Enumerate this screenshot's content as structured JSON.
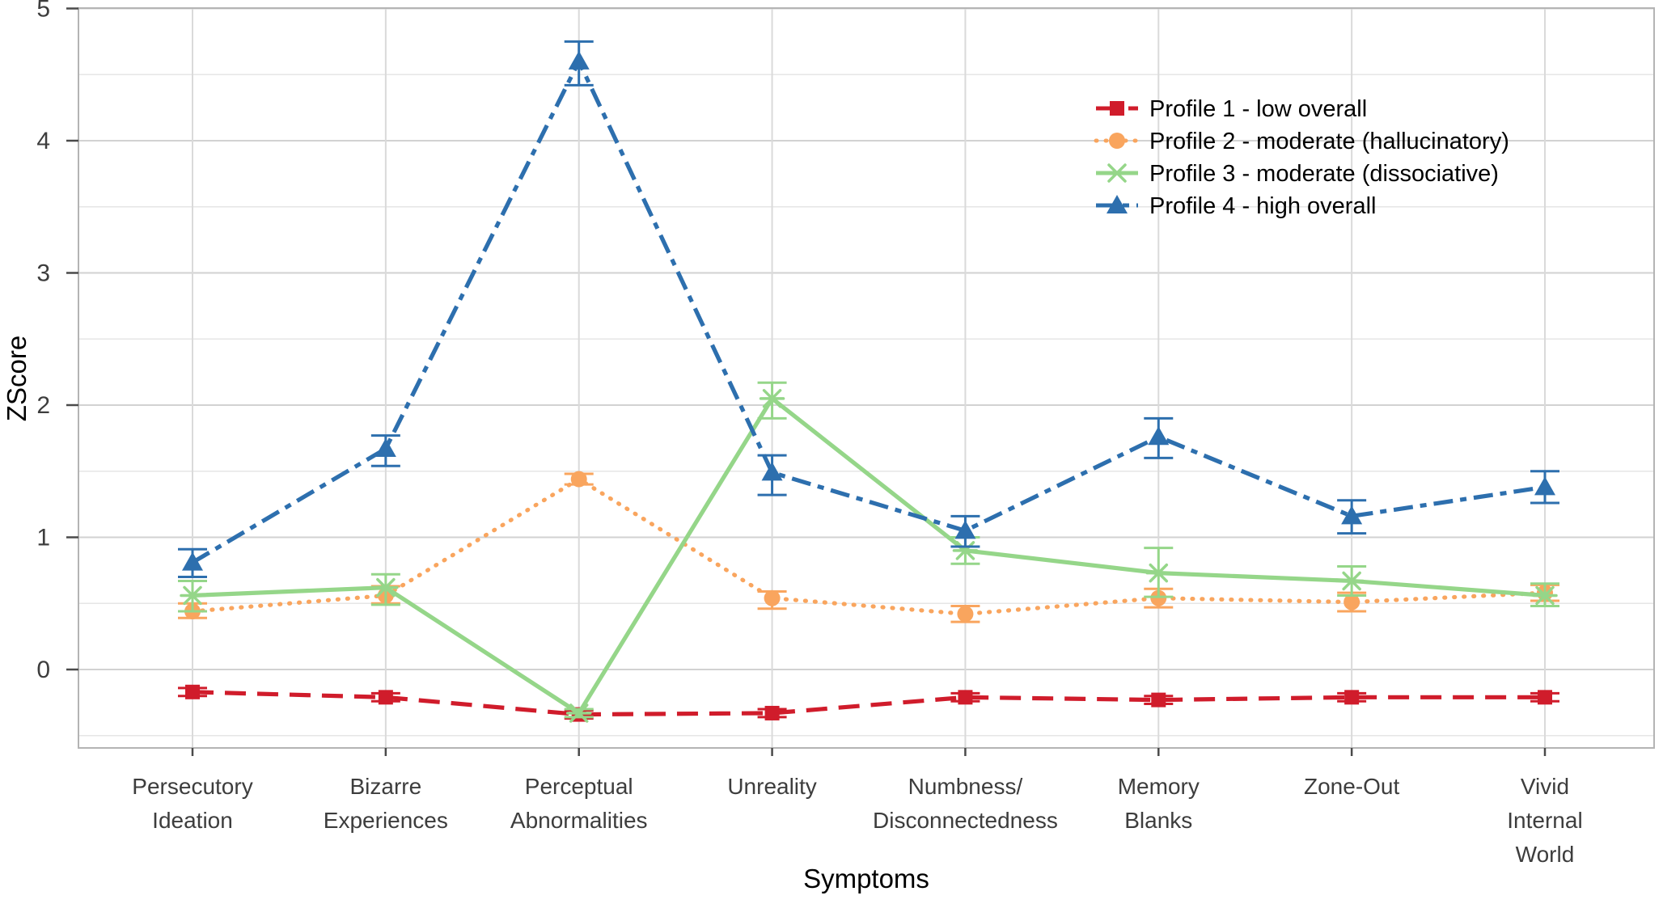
{
  "figure": {
    "background": "#ffffff",
    "border_color": "#b4b4b4",
    "grid_major_color": "#d2d2d2",
    "grid_minor_color": "#e6e6e6",
    "grid_vertical_color": "#dadada",
    "tick_color": "#4a4a4a",
    "tick_label_color": "#3d3d3d",
    "axis_title_color": "#000000",
    "legend_text_color": "#000000"
  },
  "chart_data": {
    "type": "line",
    "title": "",
    "xlabel": "Symptoms",
    "ylabel": "ZScore",
    "ylim": [
      -0.6,
      5
    ],
    "grid": "on",
    "legend_position": "top-right-inside",
    "y_major_ticks": [
      0,
      1,
      2,
      3,
      4,
      5
    ],
    "y_minor_ticks": [
      -0.5,
      0.5,
      1.5,
      2.5,
      3.5,
      4.5
    ],
    "categories": [
      [
        "Persecutory",
        "Ideation"
      ],
      [
        "Bizarre",
        "Experiences"
      ],
      [
        "Perceptual",
        "Abnormalities"
      ],
      [
        "Unreality"
      ],
      [
        "Numbness/",
        "Disconnectedness"
      ],
      [
        "Memory",
        "Blanks"
      ],
      [
        "Zone-Out"
      ],
      [
        "Vivid",
        "Internal",
        "World"
      ]
    ],
    "series": [
      {
        "name": "Profile 1 - low overall",
        "color": "#d01c2b",
        "line_style": "dashed",
        "marker": "square",
        "values": [
          -0.17,
          -0.21,
          -0.34,
          -0.33,
          -0.21,
          -0.23,
          -0.21,
          -0.21
        ],
        "ci_low": [
          -0.2,
          -0.24,
          -0.37,
          -0.36,
          -0.24,
          -0.26,
          -0.24,
          -0.24
        ],
        "ci_high": [
          -0.14,
          -0.18,
          -0.31,
          -0.3,
          -0.18,
          -0.2,
          -0.18,
          -0.18
        ]
      },
      {
        "name": "Profile 2 - moderate (hallucinatory)",
        "color": "#f9a55e",
        "line_style": "dotted",
        "marker": "circle",
        "values": [
          0.44,
          0.56,
          1.44,
          0.54,
          0.42,
          0.54,
          0.51,
          0.58
        ],
        "ci_low": [
          0.39,
          0.5,
          1.4,
          0.46,
          0.36,
          0.47,
          0.44,
          0.52
        ],
        "ci_high": [
          0.5,
          0.63,
          1.48,
          0.59,
          0.48,
          0.61,
          0.58,
          0.64
        ]
      },
      {
        "name": "Profile 3 - moderate (dissociative)",
        "color": "#95d689",
        "line_style": "solid",
        "marker": "asterisk",
        "values": [
          0.56,
          0.62,
          -0.33,
          2.05,
          0.9,
          0.73,
          0.67,
          0.56
        ],
        "ci_low": [
          0.44,
          0.49,
          -0.36,
          1.9,
          0.8,
          0.55,
          0.56,
          0.48
        ],
        "ci_high": [
          0.67,
          0.72,
          -0.3,
          2.17,
          1.0,
          0.92,
          0.78,
          0.65
        ]
      },
      {
        "name": "Profile 4 - high overall",
        "color": "#2d6fae",
        "line_style": "dashdot",
        "marker": "triangle",
        "values": [
          0.81,
          1.67,
          4.6,
          1.49,
          1.05,
          1.76,
          1.16,
          1.38
        ],
        "ci_low": [
          0.7,
          1.54,
          4.42,
          1.32,
          0.93,
          1.6,
          1.03,
          1.26
        ],
        "ci_high": [
          0.91,
          1.77,
          4.75,
          1.62,
          1.16,
          1.9,
          1.28,
          1.5
        ]
      }
    ]
  }
}
